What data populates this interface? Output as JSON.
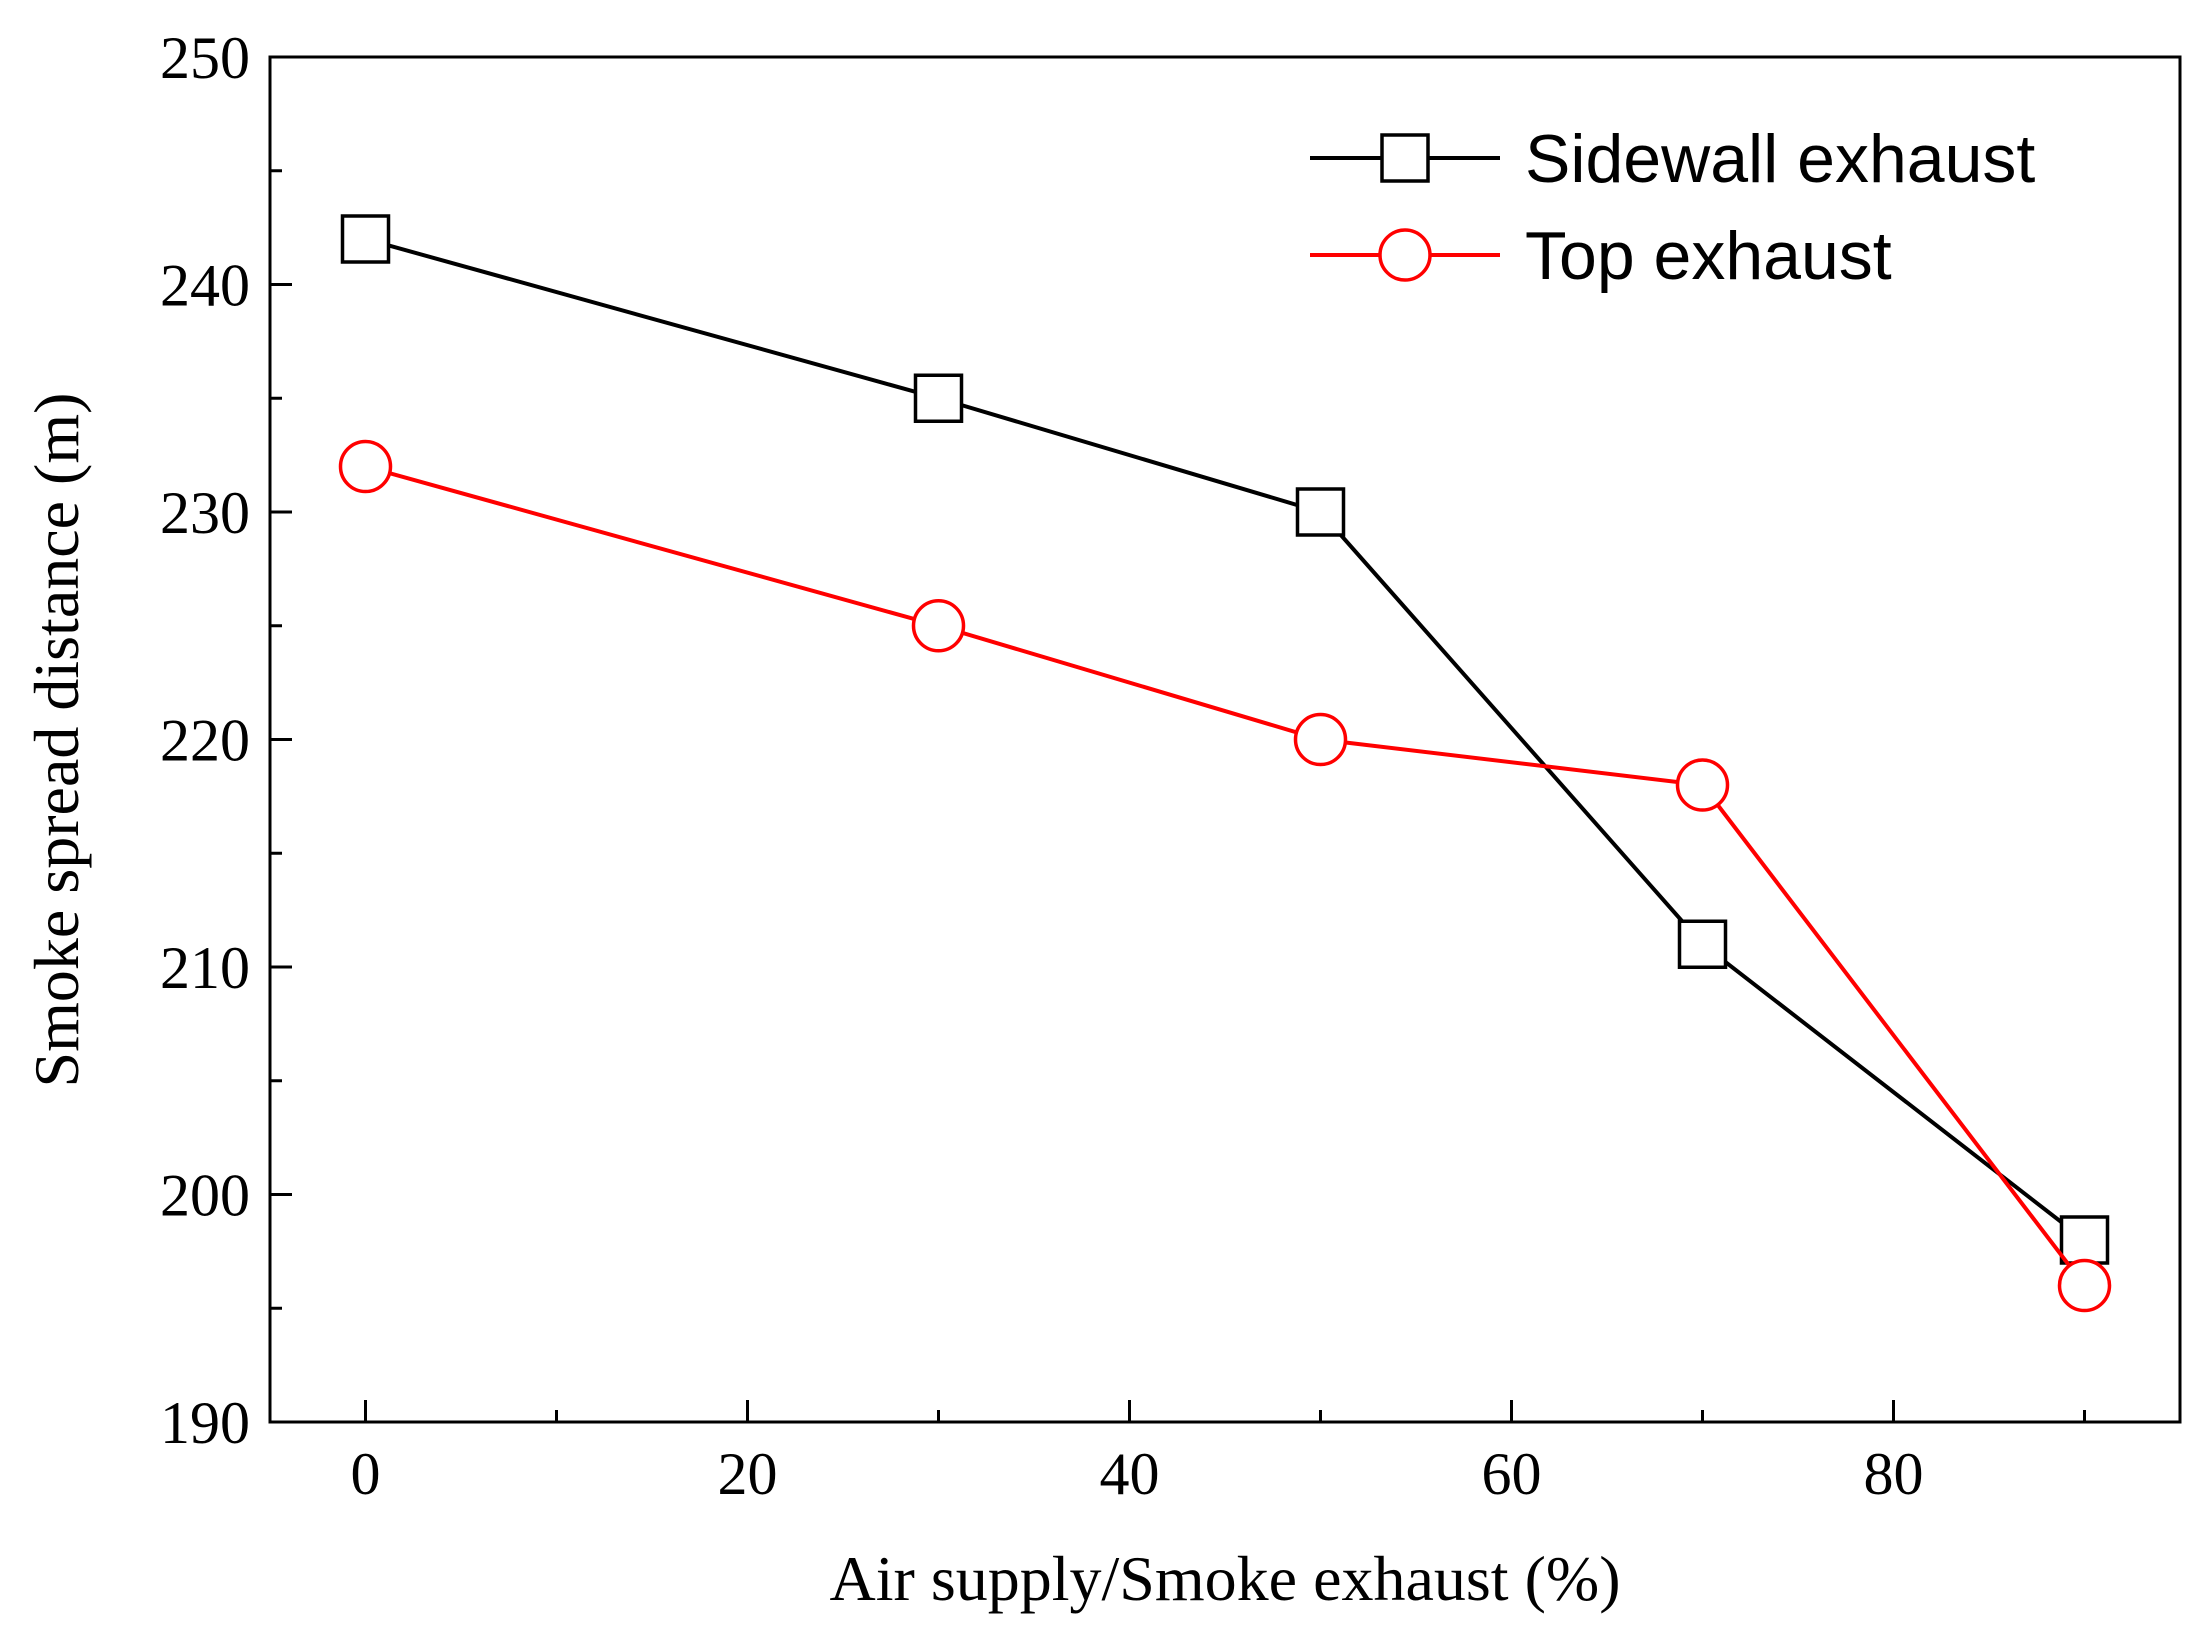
{
  "chart_data": {
    "type": "line",
    "title": "",
    "xlabel": "Air supply/Smoke exhaust (%)",
    "ylabel": "Smoke spread distance (m)",
    "xlim": [
      -5,
      95
    ],
    "ylim": [
      190,
      250
    ],
    "x_ticks": [
      0,
      20,
      40,
      60,
      80
    ],
    "x_minor_ticks": [
      10,
      30,
      50,
      70,
      90
    ],
    "y_ticks": [
      190,
      200,
      210,
      220,
      230,
      240,
      250
    ],
    "y_minor_ticks": [
      195,
      205,
      215,
      225,
      235,
      245
    ],
    "legend_position": "top-right",
    "grid": false,
    "x": [
      0,
      30,
      50,
      70,
      90
    ],
    "series": [
      {
        "name": "Sidewall exhaust",
        "marker": "square",
        "color": "#000000",
        "values": [
          242,
          235,
          230,
          211,
          198
        ]
      },
      {
        "name": "Top exhaust",
        "marker": "circle",
        "color": "#ff0000",
        "values": [
          232,
          225,
          220,
          218,
          196
        ]
      }
    ]
  }
}
